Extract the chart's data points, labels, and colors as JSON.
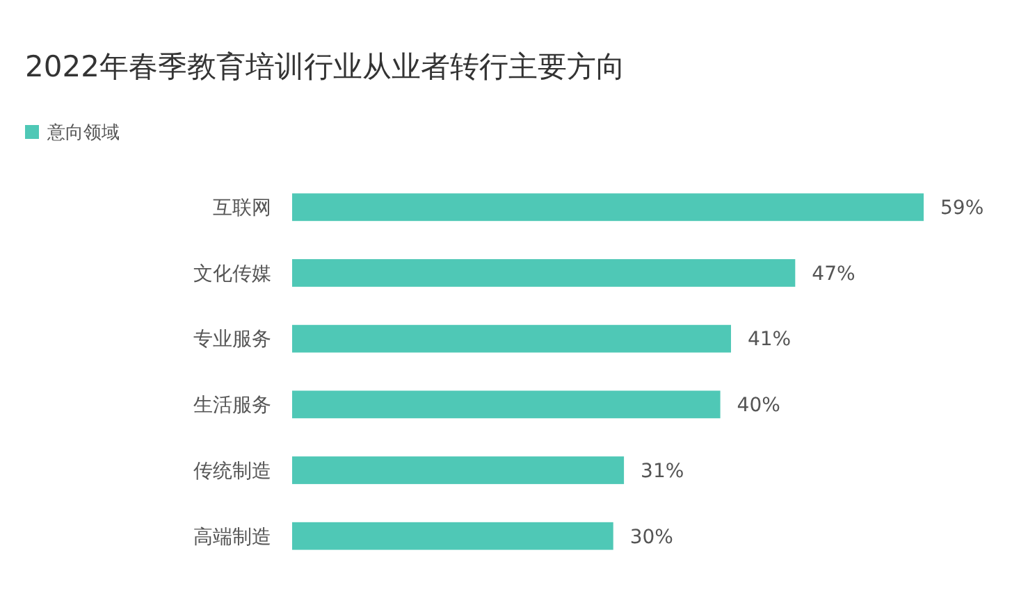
{
  "chart_data": {
    "type": "bar",
    "orientation": "horizontal",
    "title": "2022年春季教育培训行业从业者转行主要方向",
    "categories": [
      "互联网",
      "文化传媒",
      "专业服务",
      "生活服务",
      "传统制造",
      "高端制造"
    ],
    "series": [
      {
        "name": "意向领域",
        "color": "#4fc8b6",
        "values": [
          59,
          47,
          41,
          40,
          31,
          30
        ],
        "value_labels": [
          "59%",
          "47%",
          "41%",
          "40%",
          "31%",
          "30%"
        ]
      }
    ],
    "legend": "top left"
  }
}
